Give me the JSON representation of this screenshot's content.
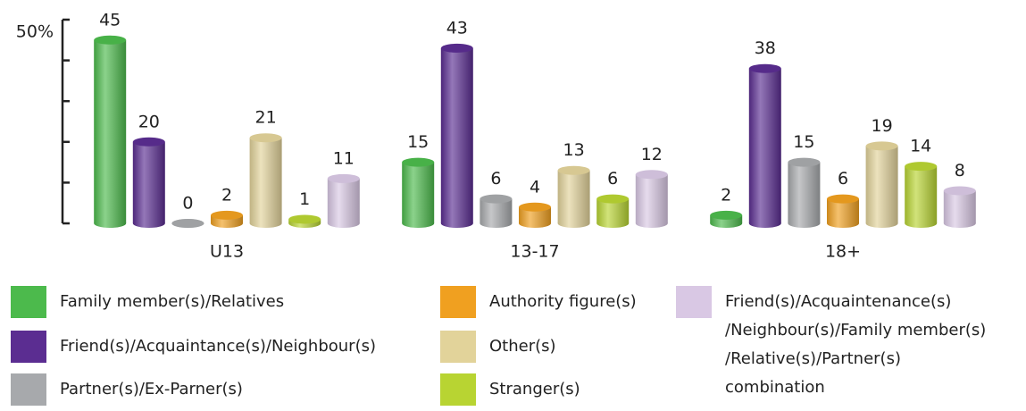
{
  "chart_data": {
    "type": "bar",
    "ylabel": "50%",
    "categories": [
      "U13",
      "13-17",
      "18+"
    ],
    "series": [
      {
        "name": "Family member(s)/Relatives",
        "color": "#4cba4c",
        "values": [
          45,
          15,
          2
        ]
      },
      {
        "name": "Friend(s)/Acquaintance(s)/Neighbour(s)",
        "color": "#5b2d91",
        "values": [
          20,
          43,
          38
        ]
      },
      {
        "name": "Partner(s)/Ex-Parner(s)",
        "color": "#a7a9ac",
        "values": [
          0,
          6,
          15
        ]
      },
      {
        "name": "Authority figure(s)",
        "color": "#f0a020",
        "values": [
          2,
          4,
          6
        ]
      },
      {
        "name": "Other(s)",
        "color": "#e2d39a",
        "values": [
          21,
          13,
          19
        ]
      },
      {
        "name": "Stranger(s)",
        "color": "#b8d432",
        "values": [
          1,
          6,
          14
        ]
      },
      {
        "name": "Friend(s)/Acquaintenance(s)\n/Neighbour(s)/Family member(s)\n/Relative(s)/Partner(s)\ncombination",
        "color": "#d9c8e4",
        "values": [
          11,
          12,
          8
        ]
      }
    ],
    "ylim": [
      0,
      50
    ],
    "yticks": [
      0,
      10,
      20,
      30,
      40,
      50
    ]
  }
}
